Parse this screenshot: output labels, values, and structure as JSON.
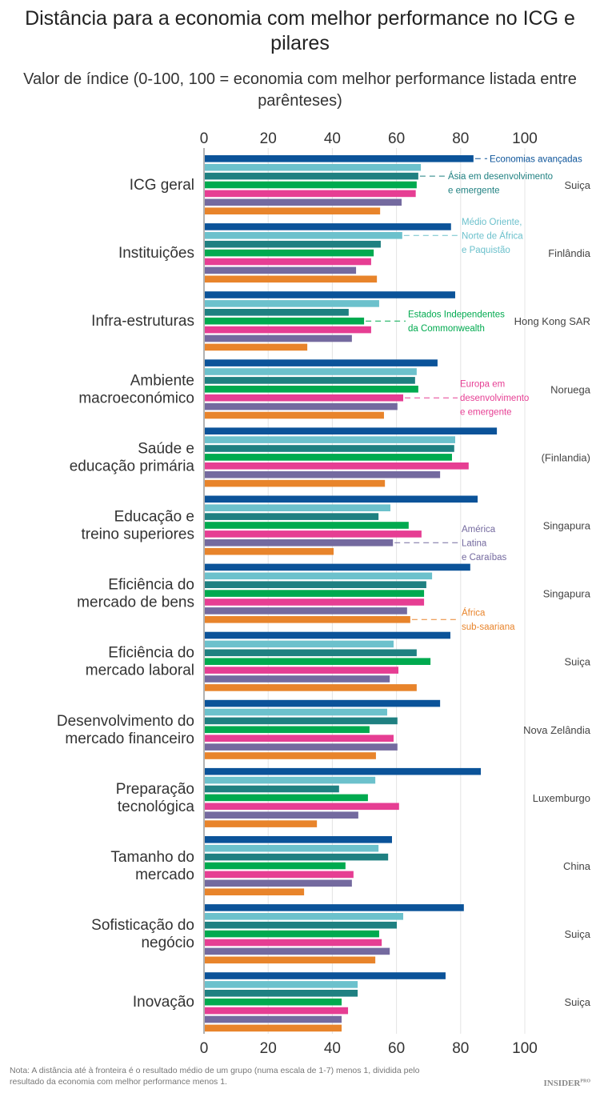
{
  "chart_data": {
    "type": "bar",
    "orientation": "horizontal",
    "title": "Distância para a economia com melhor performance no ICG e pilares",
    "subtitle": "Valor de índice (0-100, 100 = economia com melhor performance listada entre parênteses)",
    "xlim": [
      0,
      100
    ],
    "xticks": [
      0,
      20,
      40,
      60,
      80,
      100
    ],
    "grid": true,
    "categories": [
      "ICG geral",
      "Instituições",
      "Infra-estruturas",
      "Ambiente macroeconómico",
      "Saúde e educação primária",
      "Educação e treino superiores",
      "Eficiência do mercado de bens",
      "Eficiência do mercado laboral",
      "Desenvolvimento do mercado financeiro",
      "Preparação tecnológica",
      "Tamanho do mercado",
      "Sofisticação do negócio",
      "Inovação"
    ],
    "category_lines": [
      [
        "ICG geral"
      ],
      [
        "Instituições"
      ],
      [
        "Infra-estruturas"
      ],
      [
        "Ambiente",
        "macroeconómico"
      ],
      [
        "Saúde e",
        "educação primária"
      ],
      [
        "Educação e",
        "treino superiores"
      ],
      [
        "Eficiência do",
        "mercado de bens"
      ],
      [
        "Eficiência do",
        "mercado laboral"
      ],
      [
        "Desenvolvimento do",
        "mercado financeiro"
      ],
      [
        "Preparação",
        "tecnológica"
      ],
      [
        "Tamanho do",
        "mercado"
      ],
      [
        "Sofisticação do",
        "negócio"
      ],
      [
        "Inovação"
      ]
    ],
    "best_performers": [
      "Suiça",
      "Finlândia",
      "Hong Kong SAR",
      "Noruega",
      "(Finlandia)",
      "Singapura",
      "Singapura",
      "Suiça",
      "Nova Zelândia",
      "Luxemburgo",
      "China",
      "Suiça",
      "Suiça"
    ],
    "series": [
      {
        "name": "Economias avançadas",
        "color": "#0b5399",
        "values": [
          84,
          77,
          78.3,
          72.8,
          91.3,
          85.3,
          83,
          76.8,
          73.6,
          86.3,
          58.6,
          81,
          75.3
        ]
      },
      {
        "name": "Médio Oriente, Norte de África e Paquistão",
        "color": "#6cc1cc",
        "values": [
          67.6,
          61.8,
          54.6,
          66.3,
          78.3,
          58.1,
          71.1,
          59.1,
          57.1,
          53.4,
          54.4,
          62.1,
          47.9
        ]
      },
      {
        "name": "Ásia em desenvolvimento e emergente",
        "color": "#1f8081",
        "values": [
          66.8,
          55.1,
          45.1,
          65.8,
          78,
          54.4,
          69.3,
          66.3,
          60.3,
          42.1,
          57.4,
          60.1,
          47.9
        ]
      },
      {
        "name": "Estados Independentes da Commonwealth",
        "color": "#00aa4f",
        "values": [
          66.3,
          52.9,
          49.9,
          66.8,
          77.3,
          63.8,
          68.6,
          70.6,
          51.6,
          51.1,
          44.1,
          54.6,
          42.9
        ]
      },
      {
        "name": "Europa em desenvolvimento e emergente",
        "color": "#e63e93",
        "values": [
          66,
          52.1,
          52.1,
          62.1,
          82.5,
          67.8,
          68.6,
          60.6,
          59.1,
          60.8,
          46.6,
          55.4,
          44.9
        ]
      },
      {
        "name": "América Latina e Caraíbas",
        "color": "#746a9f",
        "values": [
          61.6,
          47.4,
          46.1,
          60.3,
          73.6,
          58.9,
          63.3,
          57.9,
          60.3,
          48.1,
          46.1,
          57.9,
          42.9
        ]
      },
      {
        "name": "África sub-saariana",
        "color": "#e8842b",
        "values": [
          54.9,
          53.9,
          32.2,
          56.1,
          56.4,
          40.4,
          64.3,
          66.3,
          53.6,
          35.2,
          31.2,
          53.4,
          42.9
        ]
      }
    ],
    "annotations": [
      {
        "series": 0,
        "lines": [
          "Economias avançadas"
        ]
      },
      {
        "series": 2,
        "lines": [
          "Ásia em desenvolvimento",
          "e emergente"
        ]
      },
      {
        "series": 1,
        "lines": [
          "Médio Oriente,",
          "Norte de África",
          "e Paquistão"
        ]
      },
      {
        "series": 3,
        "lines": [
          "Estados Independentes",
          "da Commonwealth"
        ]
      },
      {
        "series": 4,
        "lines": [
          "Europa em",
          "desenvolvimento",
          "e emergente"
        ]
      },
      {
        "series": 5,
        "lines": [
          "América",
          "Latina",
          "e Caraíbas"
        ]
      },
      {
        "series": 6,
        "lines": [
          "África",
          "sub-saariana"
        ]
      }
    ]
  },
  "note": "Nota: A distância até à fronteira é o resultado médio de um grupo (numa escala de 1-7) menos 1, dividida pelo resultado da economia com melhor performance menos 1.",
  "logo": "INSIDER PRO"
}
